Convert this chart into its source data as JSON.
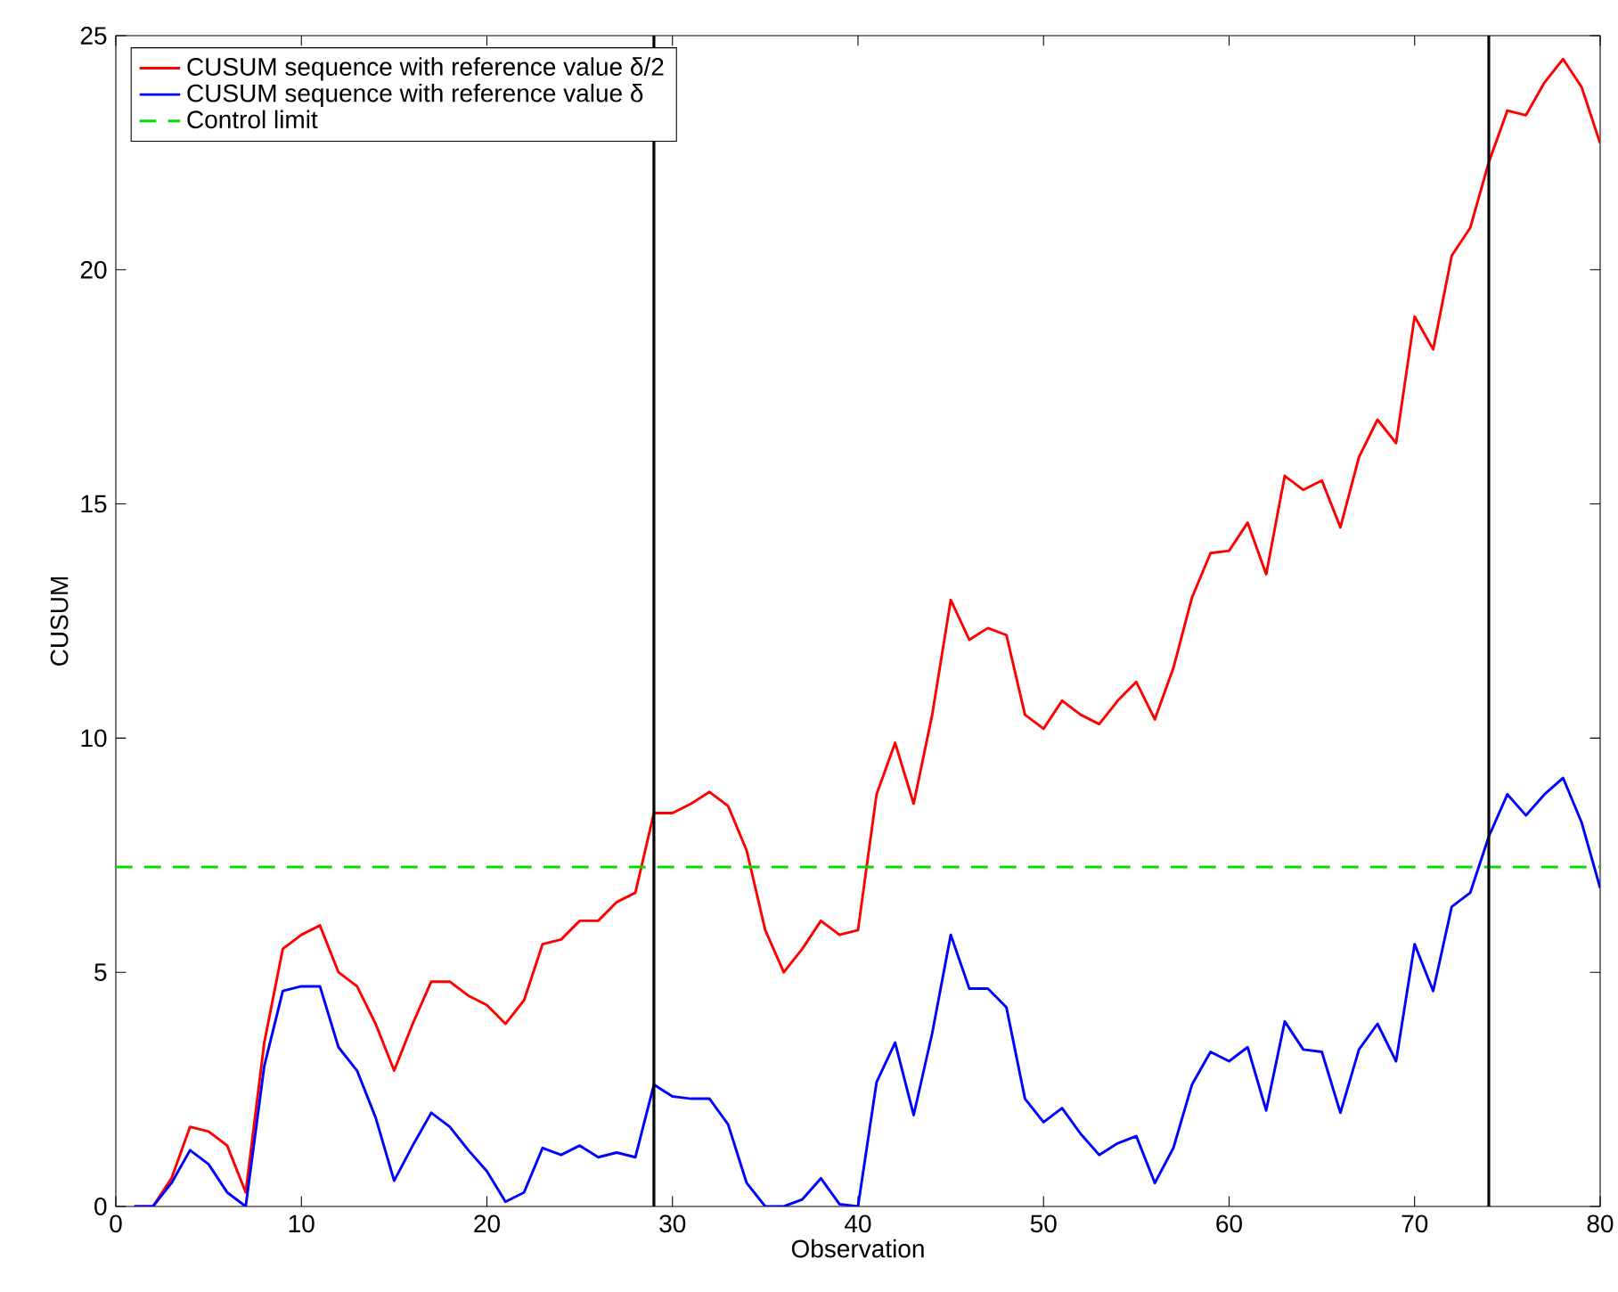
{
  "chart_data": {
    "type": "line",
    "xlabel": "Observation",
    "ylabel": "CUSUM",
    "x": [
      1,
      2,
      3,
      4,
      5,
      6,
      7,
      8,
      9,
      10,
      11,
      12,
      13,
      14,
      15,
      16,
      17,
      18,
      19,
      20,
      21,
      22,
      23,
      24,
      25,
      26,
      27,
      28,
      29,
      30,
      31,
      32,
      33,
      34,
      35,
      36,
      37,
      38,
      39,
      40,
      41,
      42,
      43,
      44,
      45,
      46,
      47,
      48,
      49,
      50,
      51,
      52,
      53,
      54,
      55,
      56,
      57,
      58,
      59,
      60,
      61,
      62,
      63,
      64,
      65,
      66,
      67,
      68,
      69,
      70,
      71,
      72,
      73,
      74,
      75,
      76,
      77,
      78,
      79,
      80
    ],
    "series": [
      {
        "name": "CUSUM sequence with reference value δ/2",
        "color": "#ff0000",
        "values": [
          0,
          0,
          0.6,
          1.7,
          1.6,
          1.3,
          0.3,
          3.5,
          5.5,
          5.8,
          6.0,
          5.0,
          4.7,
          3.9,
          2.9,
          3.9,
          4.8,
          4.8,
          4.5,
          4.3,
          3.9,
          4.4,
          5.6,
          5.7,
          6.1,
          6.1,
          6.5,
          6.7,
          8.4,
          8.4,
          8.6,
          8.85,
          8.55,
          7.6,
          5.9,
          5.0,
          5.5,
          6.1,
          5.8,
          5.9,
          8.8,
          9.9,
          8.6,
          10.5,
          12.95,
          12.1,
          12.35,
          12.2,
          10.5,
          10.2,
          10.8,
          10.5,
          10.3,
          10.8,
          11.2,
          10.4,
          11.5,
          13.0,
          13.95,
          14.0,
          14.6,
          13.5,
          15.6,
          15.3,
          15.5,
          14.5,
          16.0,
          16.8,
          16.3,
          19.0,
          18.3,
          20.3,
          20.9,
          22.3,
          23.4,
          23.3,
          24.0,
          24.5,
          23.9,
          22.7
        ]
      },
      {
        "name": "CUSUM sequence with reference value δ",
        "color": "#0000ff",
        "values": [
          0,
          0,
          0.5,
          1.2,
          0.9,
          0.3,
          0,
          3.0,
          4.6,
          4.7,
          4.7,
          3.4,
          2.9,
          1.9,
          0.55,
          1.3,
          2.0,
          1.7,
          1.2,
          0.75,
          0.1,
          0.3,
          1.25,
          1.1,
          1.3,
          1.05,
          1.15,
          1.05,
          2.6,
          2.35,
          2.3,
          2.3,
          1.75,
          0.5,
          0,
          0,
          0.15,
          0.6,
          0.05,
          0,
          2.65,
          3.5,
          1.95,
          3.7,
          5.8,
          4.65,
          4.65,
          4.25,
          2.3,
          1.8,
          2.1,
          1.55,
          1.1,
          1.35,
          1.5,
          0.5,
          1.25,
          2.6,
          3.3,
          3.1,
          3.4,
          2.05,
          3.95,
          3.35,
          3.3,
          2.0,
          3.35,
          3.9,
          3.1,
          5.6,
          4.6,
          6.4,
          6.7,
          7.9,
          8.8,
          8.35,
          8.8,
          9.15,
          8.2,
          6.8
        ]
      },
      {
        "name": "Control limit",
        "color": "#00dd00",
        "type": "line",
        "line_style": "dashed",
        "x": [
          0,
          80
        ],
        "values": [
          7.25,
          7.25
        ]
      }
    ],
    "ref_lines": [
      {
        "axis": "x",
        "value": 29,
        "color": "#000000"
      },
      {
        "axis": "x",
        "value": 74,
        "color": "#000000"
      }
    ],
    "xlim": [
      0,
      80
    ],
    "xticks": [
      0,
      10,
      20,
      30,
      40,
      50,
      60,
      70,
      80
    ],
    "ylim": [
      0,
      25
    ],
    "yticks": [
      0,
      5,
      10,
      15,
      20,
      25
    ],
    "legend": "top left",
    "grid": false,
    "marker": "none"
  }
}
